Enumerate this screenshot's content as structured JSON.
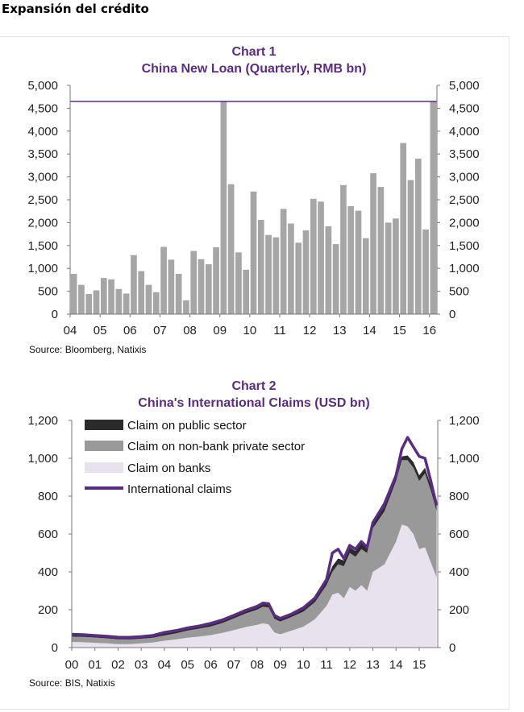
{
  "page": {
    "heading": "Expansión del crédito"
  },
  "colors": {
    "title": "#5b2d82",
    "bar": "#a6a6a6",
    "purple": "#5b2d82",
    "public": "#2b2b2b",
    "nonbank": "#999999",
    "banks": "#e7e2ee"
  },
  "chart_data": [
    {
      "type": "bar",
      "title": "Chart 1",
      "subtitle": "China New Loan (Quarterly, RMB bn)",
      "source": "Source: Bloomberg, Natixis",
      "ylim": [
        0,
        5000
      ],
      "yticks": [
        0,
        500,
        1000,
        1500,
        2000,
        2500,
        3000,
        3500,
        4000,
        4500,
        5000
      ],
      "ytick_labels": [
        "0",
        "500",
        "1,000",
        "1,500",
        "2,000",
        "2,500",
        "3,000",
        "3,500",
        "4,000",
        "4,500",
        "5,000"
      ],
      "xtick_labels": [
        "04",
        "05",
        "06",
        "07",
        "08",
        "09",
        "10",
        "11",
        "12",
        "13",
        "14",
        "15",
        "16"
      ],
      "reference_line": 4650,
      "values": [
        880,
        640,
        440,
        520,
        790,
        760,
        550,
        450,
        1290,
        940,
        640,
        480,
        1470,
        1190,
        880,
        300,
        1380,
        1200,
        1090,
        1460,
        4650,
        2840,
        1350,
        970,
        2680,
        2060,
        1730,
        1680,
        2300,
        1980,
        1560,
        1830,
        2520,
        2460,
        1920,
        1530,
        2820,
        2360,
        2260,
        1660,
        3080,
        2780,
        2000,
        2090,
        3740,
        2930,
        3400,
        1850,
        4650
      ]
    },
    {
      "type": "area",
      "title": "Chart 2",
      "subtitle": "China's International Claims (USD bn)",
      "source": "Source: BIS, Natixis",
      "ylim": [
        0,
        1200
      ],
      "yticks": [
        0,
        200,
        400,
        600,
        800,
        1000,
        1200
      ],
      "ytick_labels": [
        "0",
        "200",
        "400",
        "600",
        "800",
        "1,000",
        "1,200"
      ],
      "xtick_labels": [
        "00",
        "01",
        "02",
        "03",
        "04",
        "05",
        "06",
        "07",
        "08",
        "09",
        "10",
        "11",
        "12",
        "13",
        "14",
        "15"
      ],
      "x": [
        2000.0,
        2000.5,
        2001.0,
        2001.5,
        2002.0,
        2002.5,
        2003.0,
        2003.5,
        2004.0,
        2004.5,
        2005.0,
        2005.5,
        2006.0,
        2006.5,
        2007.0,
        2007.5,
        2008.0,
        2008.25,
        2008.5,
        2008.75,
        2009.0,
        2009.5,
        2010.0,
        2010.5,
        2011.0,
        2011.25,
        2011.5,
        2011.75,
        2012.0,
        2012.25,
        2012.5,
        2012.75,
        2013.0,
        2013.5,
        2014.0,
        2014.25,
        2014.5,
        2014.75,
        2015.0,
        2015.25,
        2015.5,
        2015.75
      ],
      "series": [
        {
          "name": "Claim on banks",
          "color": "#e7e2ee",
          "values": [
            30,
            28,
            25,
            22,
            18,
            18,
            22,
            27,
            36,
            43,
            52,
            58,
            66,
            78,
            92,
            108,
            120,
            128,
            122,
            80,
            70,
            90,
            110,
            150,
            220,
            280,
            290,
            260,
            320,
            300,
            330,
            300,
            400,
            440,
            560,
            650,
            640,
            600,
            520,
            530,
            450,
            370
          ]
        },
        {
          "name": "Claim on non-bank private sector",
          "color": "#999999",
          "values": [
            28,
            28,
            28,
            27,
            26,
            25,
            25,
            25,
            28,
            32,
            38,
            42,
            45,
            52,
            62,
            72,
            80,
            88,
            90,
            72,
            68,
            72,
            80,
            90,
            110,
            120,
            150,
            170,
            180,
            180,
            190,
            200,
            230,
            280,
            320,
            340,
            350,
            350,
            360,
            390,
            380,
            350
          ]
        },
        {
          "name": "Claim on public sector",
          "color": "#2b2b2b",
          "values": [
            10,
            10,
            9,
            9,
            8,
            8,
            9,
            9,
            10,
            10,
            12,
            12,
            14,
            14,
            14,
            14,
            15,
            16,
            18,
            16,
            14,
            14,
            16,
            18,
            25,
            30,
            30,
            30,
            30,
            30,
            30,
            30,
            25,
            25,
            20,
            20,
            25,
            30,
            30,
            30,
            25,
            25
          ]
        },
        {
          "name": "International claims",
          "color": "#5b2d82",
          "values": [
            70,
            68,
            64,
            60,
            55,
            54,
            58,
            64,
            80,
            90,
            104,
            114,
            128,
            146,
            170,
            196,
            218,
            235,
            232,
            170,
            154,
            178,
            210,
            262,
            360,
            500,
            520,
            470,
            540,
            520,
            560,
            530,
            660,
            760,
            910,
            1050,
            1110,
            1060,
            1010,
            1000,
            880,
            750
          ]
        }
      ]
    }
  ]
}
